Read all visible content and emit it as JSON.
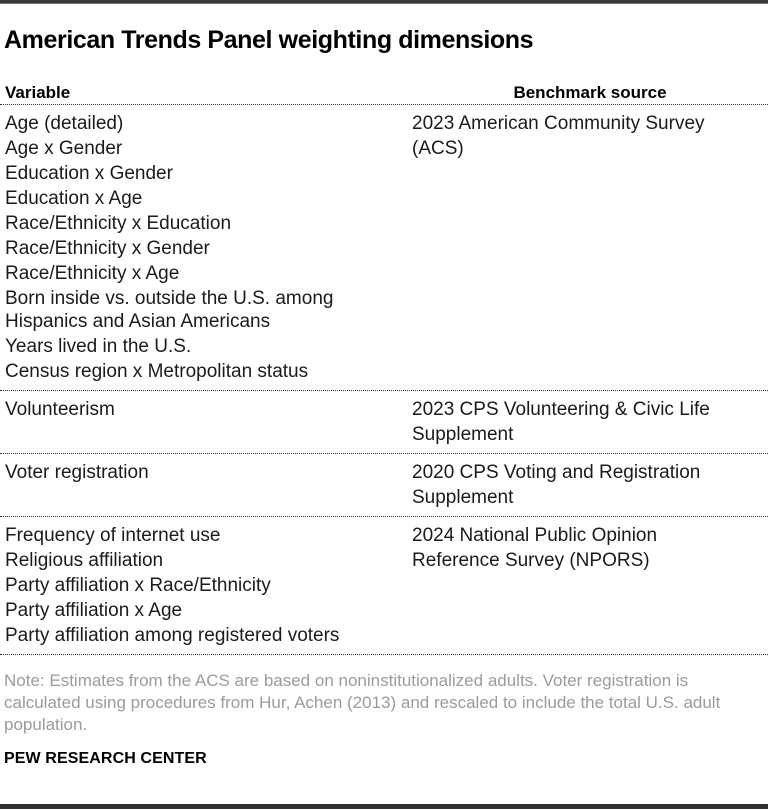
{
  "chart_data": {
    "type": "table",
    "title": "American Trends Panel weighting dimensions",
    "columns": [
      "Variable",
      "Benchmark source"
    ],
    "groups": [
      {
        "variables": [
          "Age (detailed)",
          "Age x Gender",
          "Education x Gender",
          "Education x Age",
          "Race/Ethnicity x Education",
          "Race/Ethnicity x Gender",
          "Race/Ethnicity x Age",
          "Born inside vs. outside the U.S. among Hispanics and Asian Americans",
          "Years lived in the U.S.",
          "Census region x Metropolitan status"
        ],
        "benchmark": "2023 American Community Survey (ACS)",
        "benchmark_lines": [
          "2023 American Community Survey",
          "(ACS)"
        ]
      },
      {
        "variables": [
          "Volunteerism"
        ],
        "benchmark": "2023 CPS Volunteering & Civic Life Supplement",
        "benchmark_lines": [
          "2023 CPS Volunteering & Civic Life",
          "Supplement"
        ]
      },
      {
        "variables": [
          "Voter registration"
        ],
        "benchmark": "2020 CPS Voting and Registration Supplement",
        "benchmark_lines": [
          "2020 CPS Voting and Registration",
          "Supplement"
        ]
      },
      {
        "variables": [
          "Frequency of internet use",
          "Religious affiliation",
          "Party affiliation x Race/Ethnicity",
          "Party affiliation x Age",
          "Party affiliation among registered voters"
        ],
        "benchmark": "2024 National Public Opinion Reference Survey (NPORS)",
        "benchmark_lines": [
          "2024 National Public Opinion",
          "Reference Survey (NPORS)"
        ]
      }
    ]
  },
  "note": {
    "text": "Note: Estimates from the ACS are based on noninstitutionalized adults. Voter registration is calculated using procedures from Hur, Achen (2013) and rescaled to include the total U.S. adult population."
  },
  "footer": {
    "brand": "PEW RESEARCH CENTER"
  },
  "colors": {
    "text": "#1b1b1b",
    "title": "#000000",
    "note_gray": "#9b9b9b",
    "rule_dark": "#383838",
    "separator_dotted": "#333333",
    "background": "#ffffff"
  }
}
